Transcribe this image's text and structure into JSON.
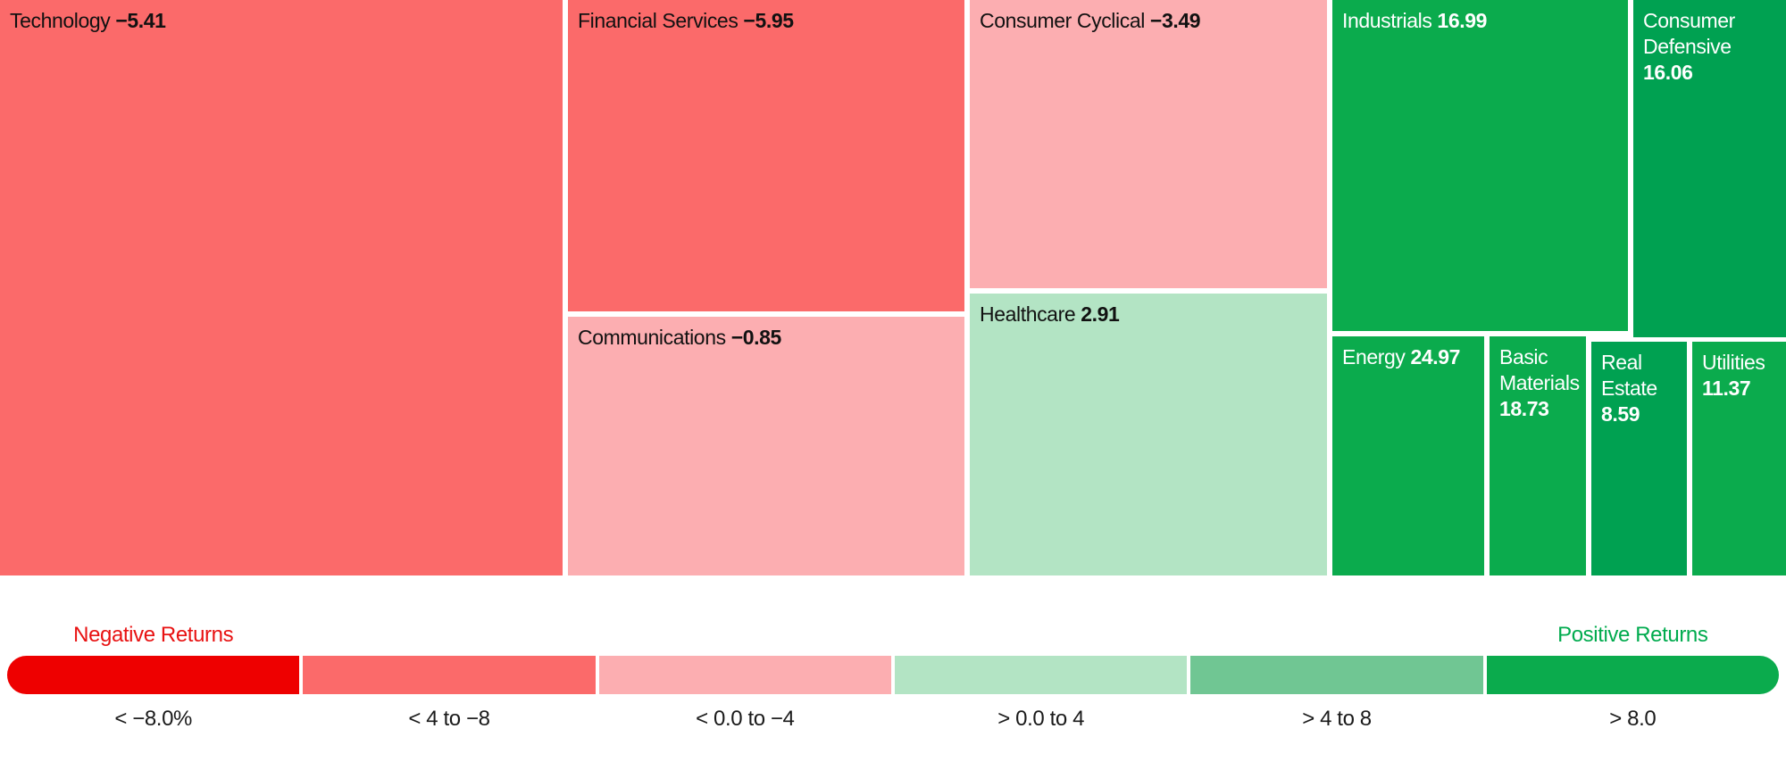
{
  "chart_data": {
    "type": "treemap",
    "description": "Sector returns treemap with color-coded performance buckets",
    "sectors": [
      {
        "name": "Technology",
        "value": -5.41,
        "value_display": "−5.41",
        "color": "#fb6a6a",
        "text_color": "#111111"
      },
      {
        "name": "Financial Services",
        "value": -5.95,
        "value_display": "−5.95",
        "color": "#fb6a6a",
        "text_color": "#111111"
      },
      {
        "name": "Communications",
        "value": -0.85,
        "value_display": "−0.85",
        "color": "#fcaeb1",
        "text_color": "#111111"
      },
      {
        "name": "Consumer Cyclical",
        "value": -3.49,
        "value_display": "−3.49",
        "color": "#fcaeb1",
        "text_color": "#111111"
      },
      {
        "name": "Healthcare",
        "value": 2.91,
        "value_display": "2.91",
        "color": "#b3e4c4",
        "text_color": "#111111"
      },
      {
        "name": "Industrials",
        "value": 16.99,
        "value_display": "16.99",
        "color": "#0bab4d",
        "text_color": "#ffffff"
      },
      {
        "name": "Consumer Defensive",
        "value": 16.06,
        "value_display": "16.06",
        "color": "#00a151",
        "text_color": "#ffffff"
      },
      {
        "name": "Energy",
        "value": 24.97,
        "value_display": "24.97",
        "color": "#0bab4d",
        "text_color": "#ffffff"
      },
      {
        "name": "Basic Materials",
        "value": 18.73,
        "value_display": "18.73",
        "color": "#0bab4d",
        "text_color": "#ffffff"
      },
      {
        "name": "Real Estate",
        "value": 8.59,
        "value_display": "8.59",
        "color": "#00a151",
        "text_color": "#ffffff"
      },
      {
        "name": "Utilities",
        "value": 11.37,
        "value_display": "11.37",
        "color": "#0bab4d",
        "text_color": "#ffffff"
      }
    ],
    "legend": {
      "negative_title": "Negative Returns",
      "negative_title_color": "#e81212",
      "positive_title": "Positive Returns",
      "positive_title_color": "#00ab4e",
      "buckets": [
        {
          "label": "< −8.0%",
          "color": "#ee0000"
        },
        {
          "label": "< 4 to −8",
          "color": "#fb6a6a"
        },
        {
          "label": "< 0.0 to −4",
          "color": "#fcaeb1"
        },
        {
          "label": "> 0.0 to 4",
          "color": "#b3e4c4"
        },
        {
          "label": "> 4 to 8",
          "color": "#70c693"
        },
        {
          "label": "> 8.0",
          "color": "#0bab4d"
        }
      ]
    }
  }
}
